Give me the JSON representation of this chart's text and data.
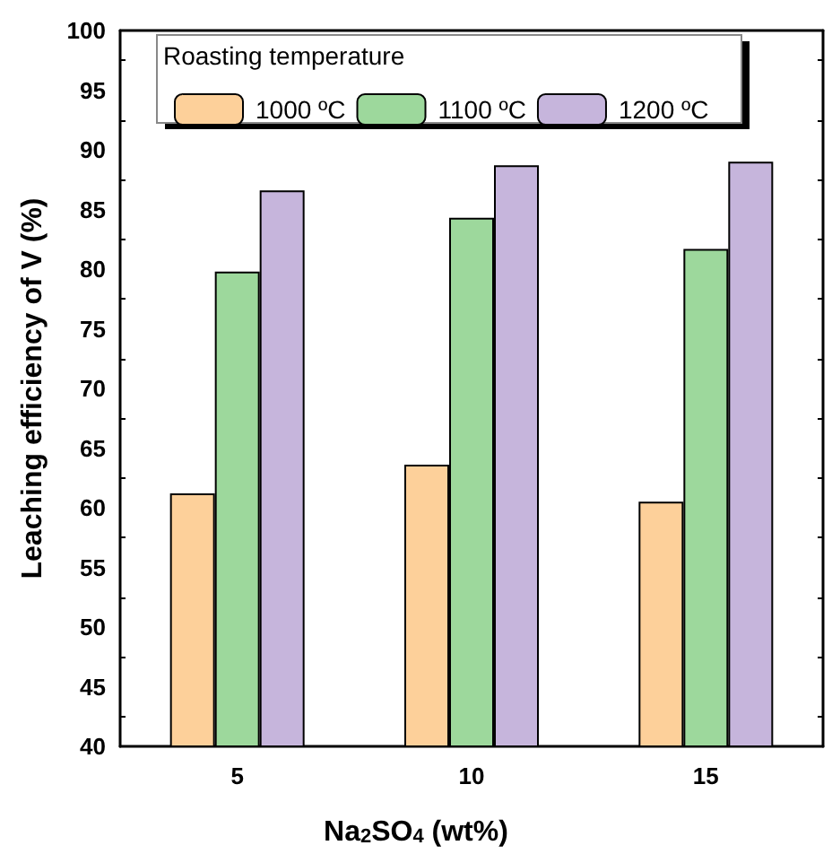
{
  "chart_data": {
    "type": "bar",
    "xlabel": "Na$_{2}$SO$_{4}$ (wt%)",
    "ylabel": "Leaching efficiency of V (%)",
    "legend_title": "Roasting temperature",
    "categories": [
      "5",
      "10",
      "15"
    ],
    "series": [
      {
        "name": "1000 ºC",
        "color": "#fdd09a",
        "values": [
          61.2,
          63.6,
          60.5
        ]
      },
      {
        "name": "1100 ºC",
        "color": "#9dd89c",
        "values": [
          79.8,
          84.3,
          81.7
        ]
      },
      {
        "name": "1200 ºC",
        "color": "#c6b5dc",
        "values": [
          86.6,
          88.7,
          89.0
        ]
      }
    ],
    "ylim": [
      40,
      100
    ],
    "yticks": [
      40,
      45,
      50,
      55,
      60,
      65,
      70,
      75,
      80,
      85,
      90,
      95,
      100
    ],
    "grid": false,
    "legend": "top left"
  }
}
